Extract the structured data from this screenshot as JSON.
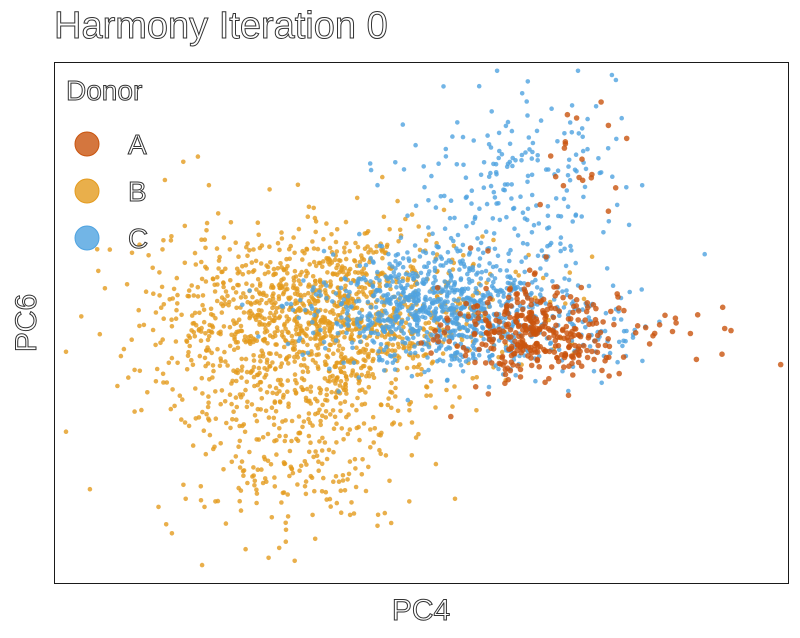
{
  "chart_data": {
    "type": "scatter",
    "title": "Harmony Iteration 0",
    "xlabel": "PC4",
    "ylabel": "PC6",
    "xlim": [
      -10,
      10
    ],
    "ylim": [
      -10,
      10
    ],
    "grid": false,
    "axis_ticks": false,
    "legend": {
      "title": "Donor",
      "placement": "top-left"
    },
    "series": [
      {
        "name": "A",
        "color": "#c9540e",
        "n_points": 380,
        "clusters": [
          {
            "cx": 3.1,
            "cy": -0.4,
            "sx": 1.1,
            "sy": 0.9,
            "weight": 0.84
          },
          {
            "cx": 5.9,
            "cy": -0.2,
            "sx": 1.9,
            "sy": 0.6,
            "weight": 0.07
          },
          {
            "cx": 3.9,
            "cy": 5.2,
            "sx": 0.7,
            "sy": 1.5,
            "weight": 0.04
          },
          {
            "cx": 2.2,
            "cy": 1.2,
            "sx": 0.8,
            "sy": 0.6,
            "weight": 0.05
          }
        ],
        "outliers": [
          [
            4.9,
            8.5
          ],
          [
            5.1,
            7.6
          ],
          [
            5.6,
            7.1
          ],
          [
            5.3,
            5.2
          ],
          [
            7.5,
            -1.4
          ],
          [
            8.2,
            -1.2
          ],
          [
            9.8,
            -1.6
          ],
          [
            0.8,
            -3.6
          ],
          [
            5.1,
            4.3
          ]
        ]
      },
      {
        "name": "B",
        "color": "#e49b1e",
        "n_points": 1650,
        "clusters": [
          {
            "cx": -2.6,
            "cy": 0.3,
            "sx": 2.3,
            "sy": 1.6,
            "weight": 0.78
          },
          {
            "cx": -3.6,
            "cy": -4.2,
            "sx": 1.7,
            "sy": 2.2,
            "weight": 0.22
          }
        ],
        "outliers": [
          [
            -8.0,
            -2.1
          ],
          [
            -7.9,
            2.7
          ],
          [
            -7.0,
            5.5
          ],
          [
            -6.1,
            6.4
          ],
          [
            -5.8,
            5.3
          ],
          [
            -6.5,
            6.2
          ],
          [
            -4.8,
            -8.7
          ],
          [
            -2.9,
            -8.3
          ],
          [
            -1.2,
            -7.8
          ],
          [
            1.4,
            2.2
          ]
        ]
      },
      {
        "name": "C",
        "color": "#4fa3e0",
        "n_points": 1150,
        "clusters": [
          {
            "cx": 0.4,
            "cy": 0.6,
            "sx": 1.6,
            "sy": 1.1,
            "weight": 0.72
          },
          {
            "cx": 2.5,
            "cy": 5.2,
            "sx": 1.4,
            "sy": 1.9,
            "weight": 0.18
          },
          {
            "cx": 3.5,
            "cy": -0.2,
            "sx": 1.5,
            "sy": 1.0,
            "weight": 0.1
          }
        ],
        "outliers": [
          [
            0.6,
            9.1
          ],
          [
            -1.2,
            5.3
          ],
          [
            3.5,
            3.0
          ],
          [
            4.6,
            -0.9
          ]
        ]
      }
    ]
  }
}
